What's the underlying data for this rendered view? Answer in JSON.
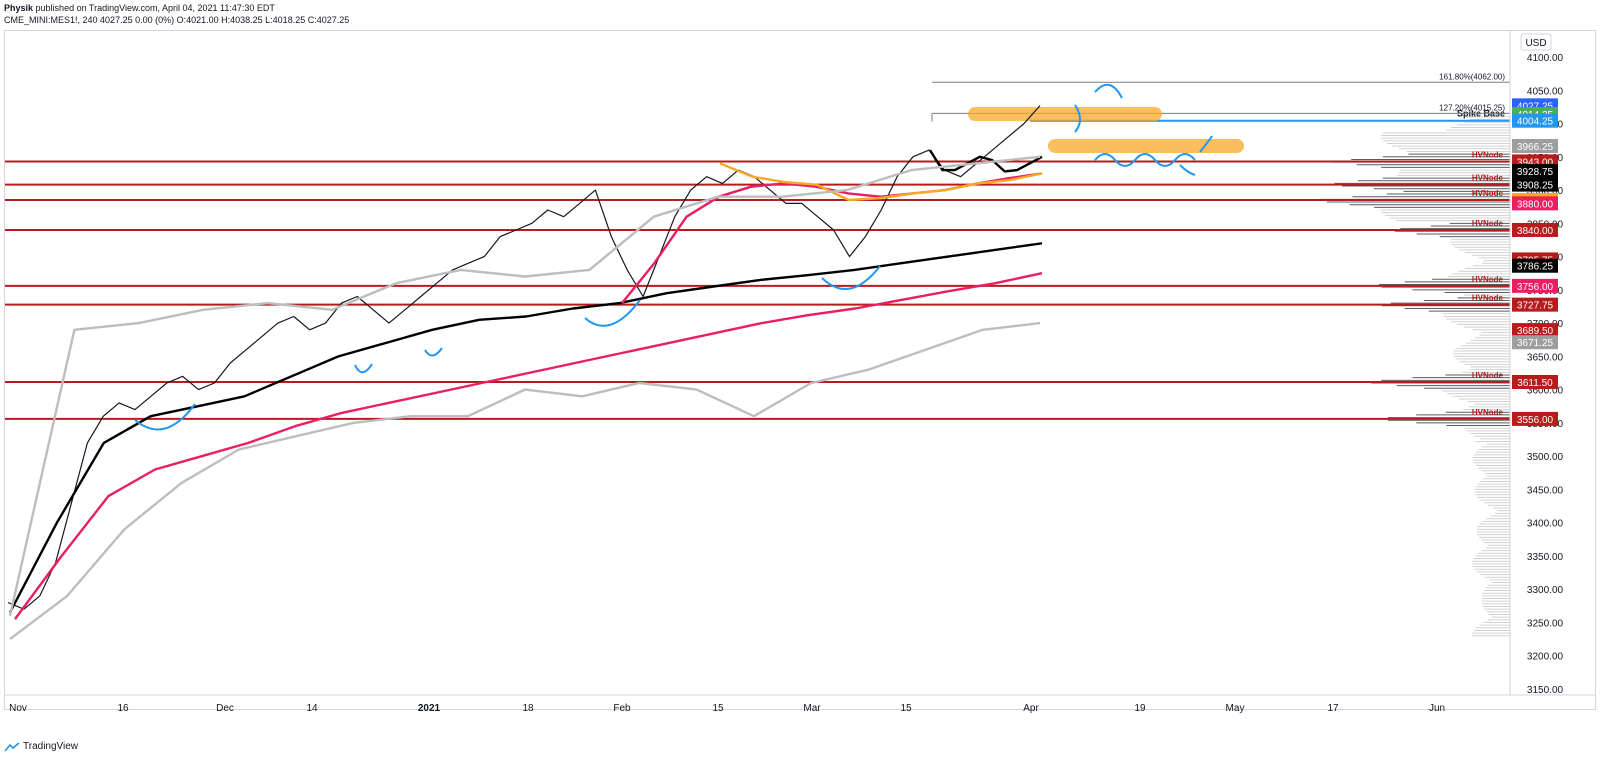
{
  "header": {
    "author": "Physik",
    "published": "published on TradingView.com, April 04, 2021 11:47:30 EDT",
    "symbol": "CME_MINI:MES1!, 240",
    "ohlc": "4027.25 0.00 (0%) O:4021.00 H:4038.25 L:4018.25 C:4027.25"
  },
  "footer": {
    "brand": "TradingView"
  },
  "chart_data": {
    "type": "line",
    "currency": "USD",
    "ylim": [
      3125,
      4140
    ],
    "y_ticks": [
      3150,
      3200,
      3250,
      3300,
      3350,
      3400,
      3450,
      3500,
      3550,
      3600,
      3650,
      3700,
      3750,
      3800,
      3850,
      3900,
      3950,
      4000,
      4050,
      4100
    ],
    "x_ticks": [
      "Nov",
      "16",
      "Dec",
      "14",
      "2021",
      "18",
      "Feb",
      "15",
      "Mar",
      "15",
      "Apr",
      "19",
      "May",
      "17",
      "Jun"
    ],
    "fib_levels": [
      {
        "label": "161.80%(4062.00)",
        "value": 4062.0
      },
      {
        "label": "127.20%(4015.25)",
        "value": 4015.25
      }
    ],
    "spike_base": {
      "label": "Spike Base",
      "value": 4004.25
    },
    "hvnode_lines": [
      3943,
      3908.25,
      3885,
      3840,
      3756,
      3727.75,
      3611.5,
      3556
    ],
    "hvnode_label": "HVNode",
    "price_labels": [
      {
        "value": "4027.25",
        "price": 4027.25,
        "color": "#4caf50"
      },
      {
        "value": "4027.25",
        "price": 4027.25,
        "color": "#2962ff"
      },
      {
        "value": "4014.25",
        "price": 4014.25,
        "color": "#4caf50"
      },
      {
        "value": "4004.25",
        "price": 4004.25,
        "color": "#2196f3"
      },
      {
        "value": "3966.25",
        "price": 3966.25,
        "color": "#9e9e9e"
      },
      {
        "value": "3943.00",
        "price": 3943.0,
        "color": "#b71c1c"
      },
      {
        "value": "3928.75",
        "price": 3928.75,
        "color": "#000000"
      },
      {
        "value": "3908.25",
        "price": 3908.25,
        "color": "#b71c1c"
      },
      {
        "value": "3908.25",
        "price": 3908.25,
        "color": "#000000"
      },
      {
        "value": "3885.00",
        "price": 3885.0,
        "color": "#f9a825"
      },
      {
        "value": "3880.00",
        "price": 3880.0,
        "color": "#e91e63"
      },
      {
        "value": "3840.00",
        "price": 3840.0,
        "color": "#b71c1c"
      },
      {
        "value": "3795.75",
        "price": 3795.75,
        "color": "#b71c1c"
      },
      {
        "value": "3786.25",
        "price": 3786.25,
        "color": "#000000"
      },
      {
        "value": "3756.00",
        "price": 3756.0,
        "color": "#e91e63"
      },
      {
        "value": "3727.75",
        "price": 3727.75,
        "color": "#b71c1c"
      },
      {
        "value": "3689.50",
        "price": 3689.5,
        "color": "#b71c1c"
      },
      {
        "value": "3671.25",
        "price": 3671.25,
        "color": "#9e9e9e"
      },
      {
        "value": "3611.50",
        "price": 3611.5,
        "color": "#b71c1c"
      },
      {
        "value": "3556.00",
        "price": 3556.0,
        "color": "#b71c1c"
      }
    ],
    "series": [
      {
        "color": "#131722",
        "kind": "price",
        "values": [
          3280,
          3270,
          3290,
          3340,
          3430,
          3520,
          3560,
          3580,
          3570,
          3590,
          3610,
          3620,
          3600,
          3610,
          3640,
          3660,
          3680,
          3700,
          3710,
          3690,
          3700,
          3730,
          3740,
          3720,
          3700,
          3720,
          3740,
          3760,
          3780,
          3790,
          3800,
          3830,
          3840,
          3850,
          3870,
          3860,
          3880,
          3900,
          3830,
          3780,
          3740,
          3800,
          3860,
          3900,
          3920,
          3910,
          3930,
          3920,
          3900,
          3880,
          3880,
          3860,
          3840,
          3800,
          3830,
          3870,
          3920,
          3950,
          3960,
          3930,
          3920,
          3940,
          3960,
          3980,
          4000,
          4027
        ]
      },
      {
        "color": "#000000",
        "kind": "ma200",
        "values": [
          3265,
          3400,
          3520,
          3560,
          3575,
          3590,
          3620,
          3650,
          3670,
          3690,
          3705,
          3710,
          3722,
          3730,
          3745,
          3755,
          3765,
          3772,
          3780,
          3790,
          3800,
          3810,
          3820
        ]
      },
      {
        "color": "#e91e63",
        "kind": "ma_red",
        "values": [
          3255,
          3350,
          3440,
          3480,
          3500,
          3520,
          3545,
          3565,
          3580,
          3595,
          3610,
          3625,
          3640,
          3655,
          3670,
          3685,
          3700,
          3712,
          3722,
          3735,
          3748,
          3760,
          3775
        ]
      },
      {
        "color": "#e91e63",
        "kind": "ma_red_short",
        "values": [
          3730,
          3790,
          3860,
          3890,
          3905,
          3910,
          3905,
          3895,
          3890,
          3895,
          3900,
          3910,
          3918,
          3925
        ]
      },
      {
        "color": "#f9a825",
        "kind": "ma_orange",
        "values": [
          3940,
          3920,
          3912,
          3908,
          3885,
          3888,
          3895,
          3900,
          3910,
          3915,
          3925
        ]
      },
      {
        "color": "#000000",
        "kind": "ma_short_black",
        "values": [
          3960,
          3930,
          3930,
          3940,
          3950,
          3945,
          3928,
          3930,
          3940,
          3950
        ]
      },
      {
        "color": "#bdbdbd",
        "kind": "band_upper",
        "values": [
          3260,
          3690,
          3700,
          3720,
          3730,
          3720,
          3760,
          3780,
          3770,
          3780,
          3860,
          3890,
          3890,
          3900,
          3930,
          3940,
          3950
        ]
      },
      {
        "color": "#bdbdbd",
        "kind": "band_lower",
        "values": [
          3225,
          3290,
          3390,
          3460,
          3510,
          3530,
          3550,
          3560,
          3560,
          3600,
          3590,
          3610,
          3600,
          3560,
          3610,
          3630,
          3660,
          3690,
          3700
        ]
      }
    ]
  }
}
